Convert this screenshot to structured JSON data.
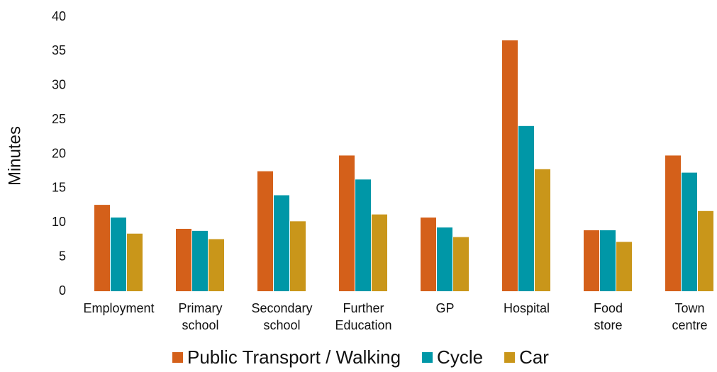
{
  "chart_data": {
    "type": "bar",
    "ylabel": "Minutes",
    "categories": [
      "Employment",
      "Primary school",
      "Secondary school",
      "Further Education",
      "GP",
      "Hospital",
      "Food store",
      "Town centre"
    ],
    "series": [
      {
        "name": "Public Transport / Walking",
        "color": "#d4601a",
        "values": [
          12.6,
          9.1,
          17.5,
          19.8,
          10.75,
          36.6,
          8.9,
          19.8
        ]
      },
      {
        "name": "Cycle",
        "color": "#0097a7",
        "values": [
          10.75,
          8.8,
          14.0,
          16.3,
          9.3,
          24.1,
          8.9,
          17.3
        ]
      },
      {
        "name": "Car",
        "color": "#c9961a",
        "values": [
          8.4,
          7.6,
          10.2,
          11.2,
          7.9,
          17.8,
          7.2,
          11.7
        ]
      }
    ],
    "ylim": [
      0,
      40
    ],
    "yticks": [
      0,
      5,
      10,
      15,
      20,
      25,
      30,
      35,
      40
    ],
    "grid": false,
    "legend": "bottom"
  }
}
